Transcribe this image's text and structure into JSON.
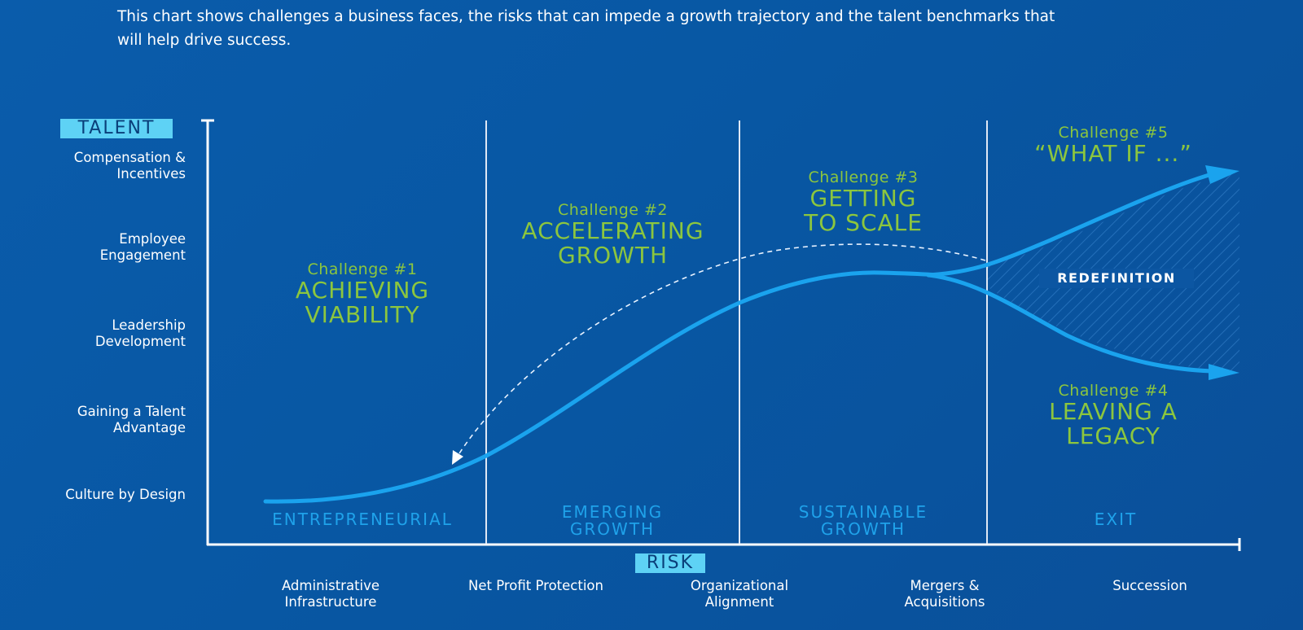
{
  "caption": "This chart shows challenges a business faces, the risks that can impede a growth trajectory and the talent benchmarks that will help drive success.",
  "axes": {
    "y_title": "TALENT",
    "x_title": "RISK",
    "y_labels": [
      "Compensation & Incentives",
      "Employee Engagement",
      "Leadership Development",
      "Gaining a Talent Advantage",
      "Culture by Design"
    ],
    "x_labels": [
      "Administrative\nInfrastructure",
      "Net Profit Protection",
      "Organizational\nAlignment",
      "Mergers &\nAcquisitions",
      "Succession"
    ]
  },
  "stages": [
    "ENTREPRENEURIAL",
    "EMERGING\nGROWTH",
    "SUSTAINABLE\nGROWTH",
    "EXIT"
  ],
  "challenges": [
    {
      "number": "Challenge #1",
      "name": "ACHIEVING\nVIABILITY"
    },
    {
      "number": "Challenge #2",
      "name": "ACCELERATING\nGROWTH"
    },
    {
      "number": "Challenge #3",
      "name": "GETTING\nTO SCALE"
    },
    {
      "number": "Challenge #4",
      "name": "LEAVING A\nLEGACY"
    },
    {
      "number": "Challenge #5",
      "name": "“WHAT IF ...”"
    }
  ],
  "redefinition_label": "REDEFINITION",
  "colors": {
    "background": "#0a5cab",
    "curve": "#1aa3ee",
    "challenge_text": "#8cc63e",
    "stage_text": "#1fa2ea",
    "badge": "#5ed2f5",
    "axis": "#ffffff"
  }
}
